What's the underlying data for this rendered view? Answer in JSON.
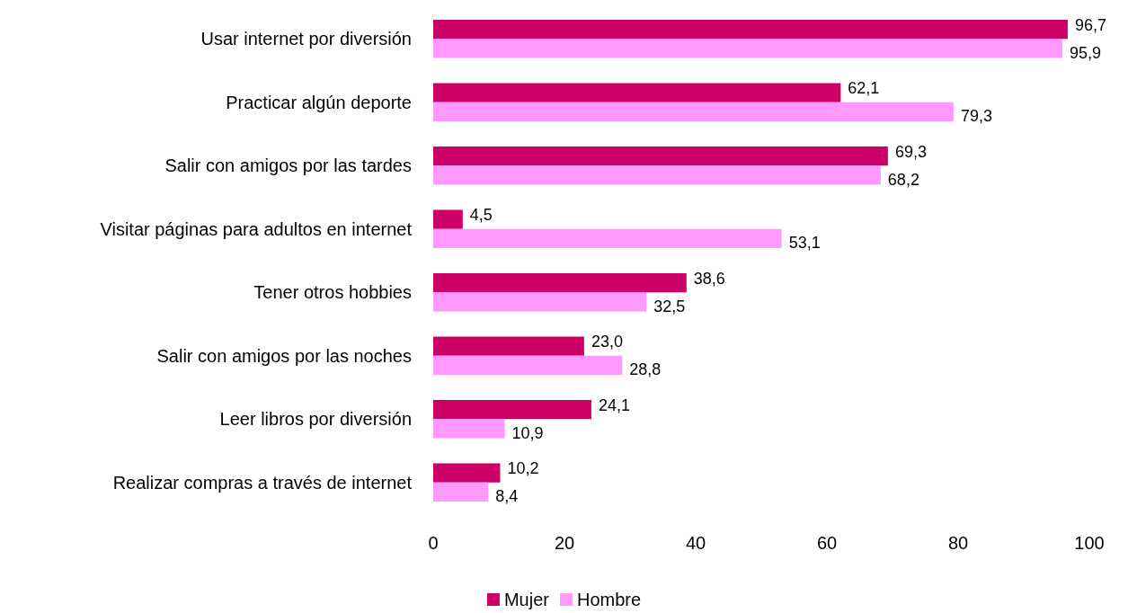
{
  "chart_data": {
    "type": "bar",
    "orientation": "horizontal",
    "categories": [
      "Usar internet por diversión",
      "Practicar algún deporte",
      "Salir con amigos por las tardes",
      "Visitar páginas para adultos en internet",
      "Tener otros hobbies",
      "Salir con amigos por las noches",
      "Leer libros por diversión",
      "Realizar compras a través de internet"
    ],
    "series": [
      {
        "name": "Mujer",
        "color": "#cc0066",
        "values": [
          96.7,
          62.1,
          69.3,
          4.5,
          38.6,
          23.0,
          24.1,
          10.2
        ],
        "value_labels": [
          "96,7",
          "62,1",
          "69,3",
          "4,5",
          "38,6",
          "23,0",
          "24,1",
          "10,2"
        ]
      },
      {
        "name": "Hombre",
        "color": "#ff99ff",
        "values": [
          95.9,
          79.3,
          68.2,
          53.1,
          32.5,
          28.8,
          10.9,
          8.4
        ],
        "value_labels": [
          "95,9",
          "79,3",
          "68,2",
          "53,1",
          "32,5",
          "28,8",
          "10,9",
          "8,4"
        ]
      }
    ],
    "xlim": [
      0,
      100
    ],
    "xticks": [
      0,
      20,
      40,
      60,
      80,
      100
    ],
    "grid": false,
    "legend": "bottom"
  }
}
